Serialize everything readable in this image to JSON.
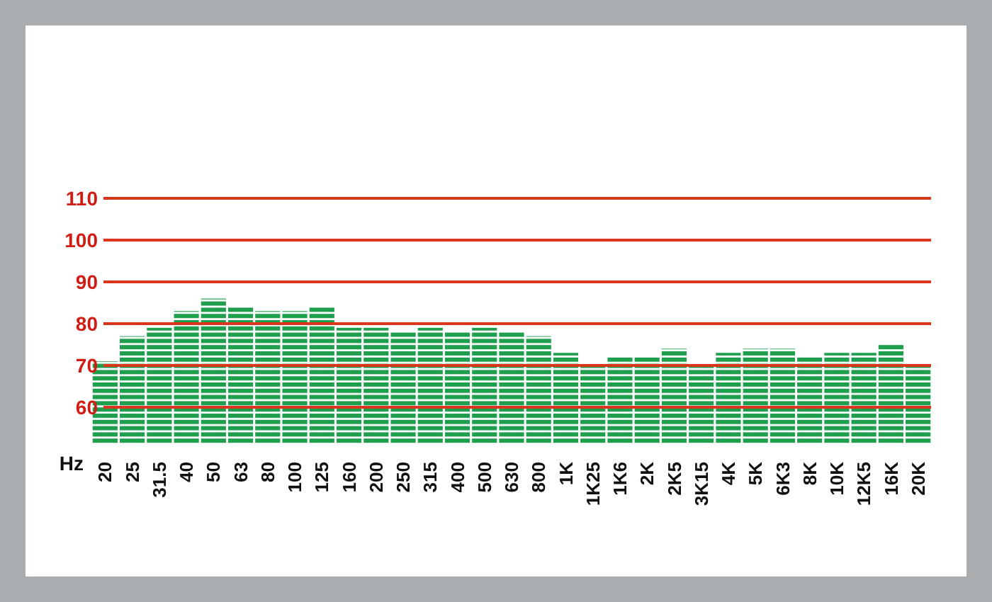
{
  "chart_data": {
    "type": "bar",
    "xlabel": "Hz",
    "categories": [
      "20",
      "25",
      "31.5",
      "40",
      "50",
      "63",
      "80",
      "100",
      "125",
      "160",
      "200",
      "250",
      "315",
      "400",
      "500",
      "630",
      "800",
      "1K",
      "1K25",
      "1K6",
      "2K",
      "2K5",
      "3K15",
      "4K",
      "5K",
      "6K3",
      "8K",
      "10K",
      "12K5",
      "16K",
      "20K"
    ],
    "values": [
      71,
      77,
      79,
      83,
      86,
      84,
      83,
      83,
      84,
      79,
      79,
      78,
      79,
      78,
      79,
      78,
      77,
      73,
      70,
      72,
      72,
      74,
      70,
      73,
      74,
      74,
      72,
      73,
      73,
      75,
      70
    ],
    "color": "#1f9e4e",
    "ylim": [
      51,
      110
    ],
    "yticks": [
      60,
      70,
      80,
      90,
      100,
      110
    ],
    "grid": "y"
  }
}
